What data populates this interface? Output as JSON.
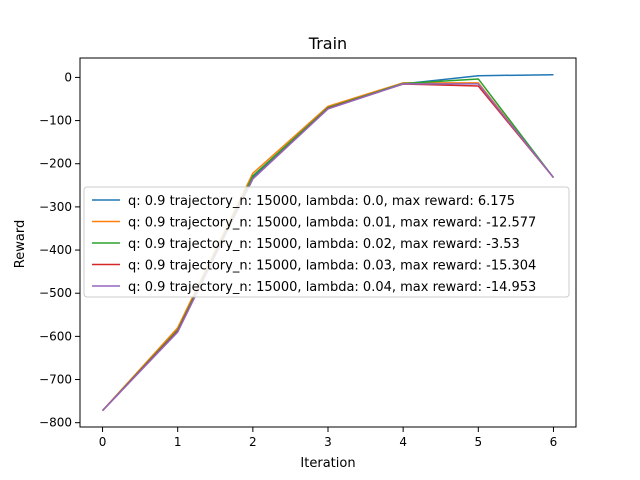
{
  "chart_data": {
    "type": "line",
    "title": "Train",
    "xlabel": "Iteration",
    "ylabel": "Reward",
    "xlim": [
      -0.3,
      6.3
    ],
    "ylim": [
      -810,
      45
    ],
    "x_ticks": [
      0,
      1,
      2,
      3,
      4,
      5,
      6
    ],
    "y_ticks": [
      0,
      -100,
      -200,
      -300,
      -400,
      -500,
      -600,
      -700,
      -800
    ],
    "grid": false,
    "legend_position": "center-left",
    "x": [
      0,
      1,
      2,
      3,
      4,
      5,
      6
    ],
    "series": [
      {
        "name": "q: 0.9 trajectory_n: 15000, lambda: 0.0, max reward: 6.175",
        "color": "#1f77b4",
        "values": [
          -772,
          -588,
          -232,
          -71,
          -15,
          4,
          6.175
        ]
      },
      {
        "name": "q: 0.9 trajectory_n: 15000, lambda: 0.01, max reward: -12.577",
        "color": "#ff7f0e",
        "values": [
          -772,
          -580,
          -222,
          -67,
          -12.577,
          -12.577,
          -232
        ]
      },
      {
        "name": "q: 0.9 trajectory_n: 15000, lambda: 0.02, max reward: -3.53",
        "color": "#2ca02c",
        "values": [
          -772,
          -585,
          -228,
          -70,
          -14,
          -3.53,
          -232
        ]
      },
      {
        "name": "q: 0.9 trajectory_n: 15000, lambda: 0.03, max reward: -15.304",
        "color": "#d62728",
        "values": [
          -772,
          -588,
          -235,
          -72,
          -15.304,
          -20,
          -232
        ]
      },
      {
        "name": "q: 0.9 trajectory_n: 15000, lambda: 0.04, max reward: -14.953",
        "color": "#9467bd",
        "values": [
          -772,
          -590,
          -235,
          -73,
          -14.953,
          -14.953,
          -232
        ]
      }
    ]
  }
}
